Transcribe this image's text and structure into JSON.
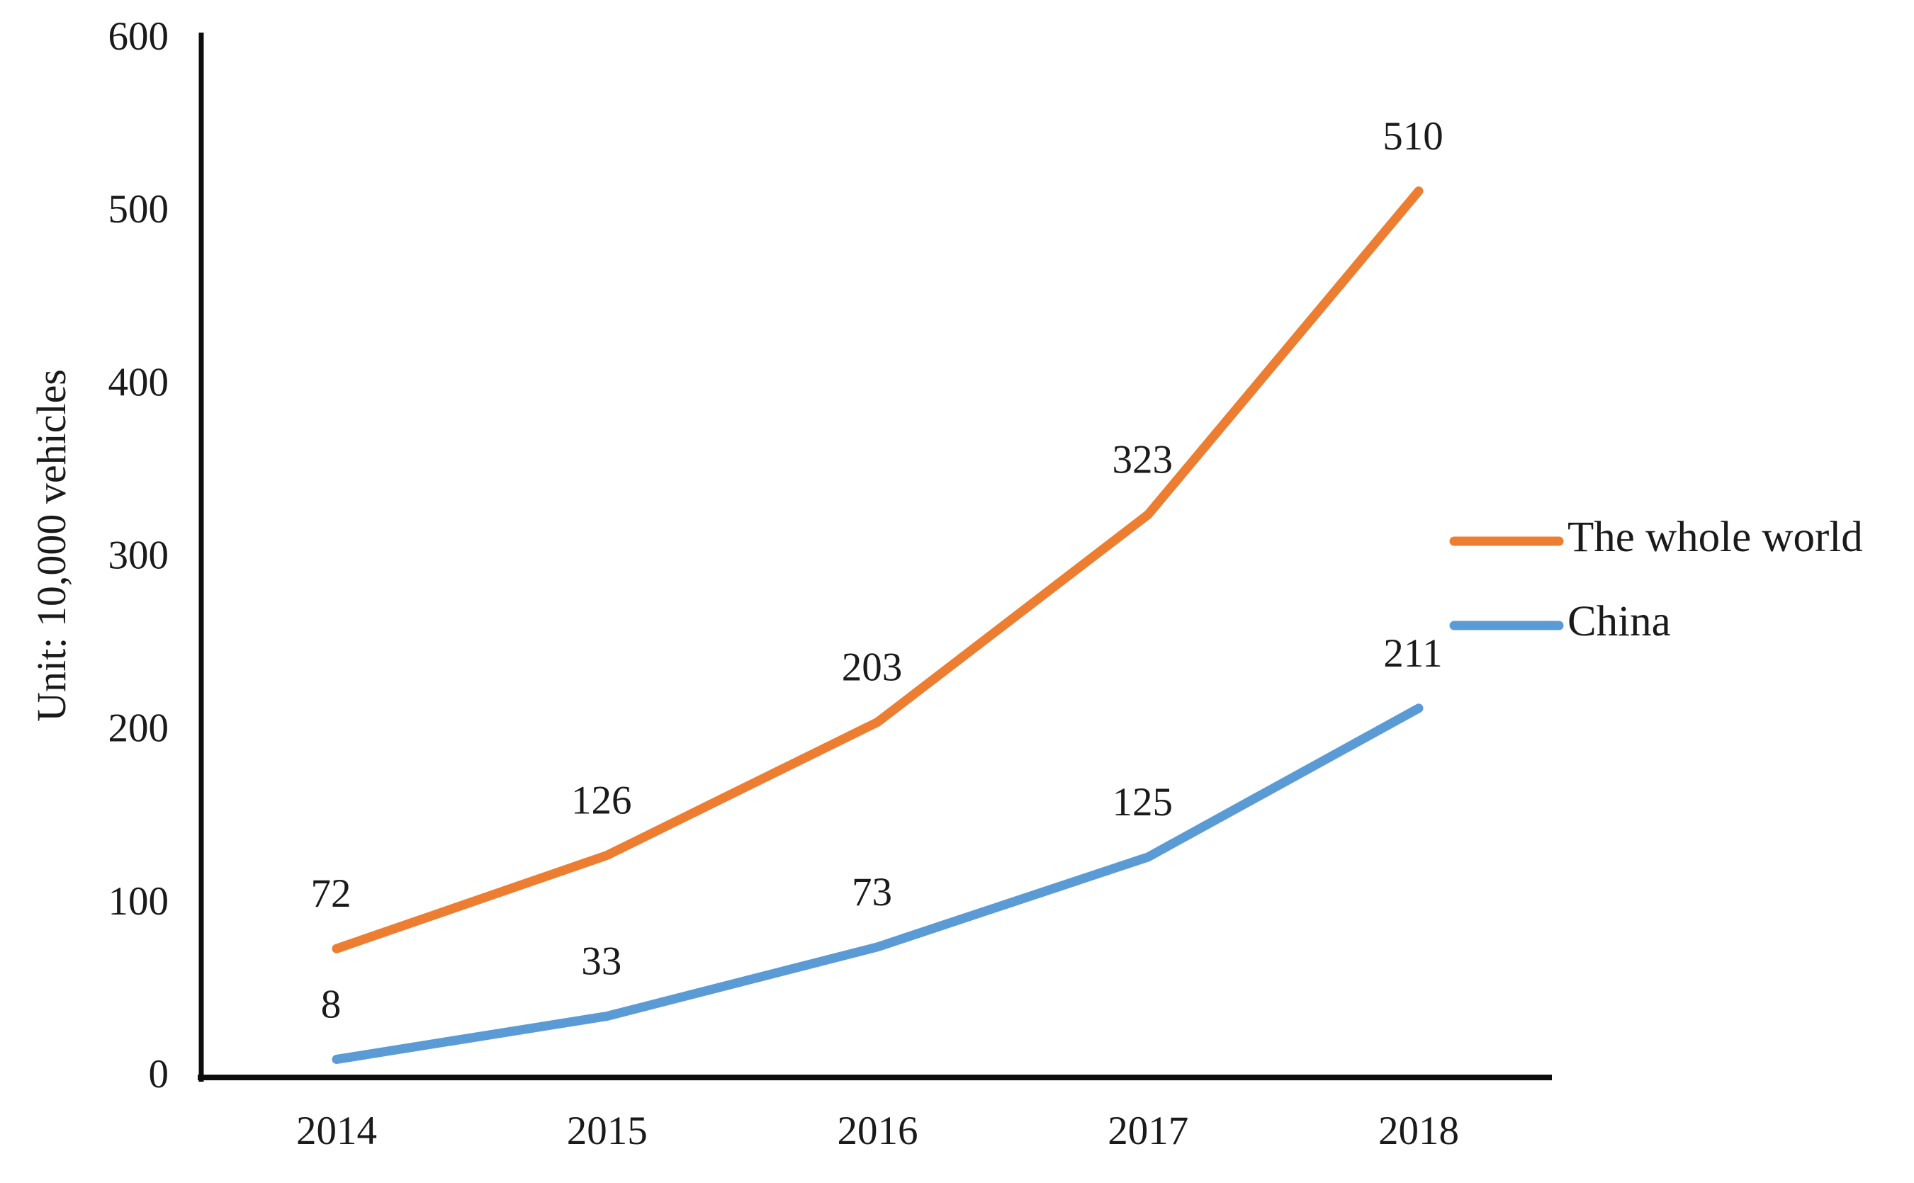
{
  "figure": {
    "description": "Line chart of vehicle ownership, the whole world vs China, 2014-2018"
  },
  "chart_data": {
    "type": "line",
    "categories": [
      "2014",
      "2015",
      "2016",
      "2017",
      "2018"
    ],
    "series": [
      {
        "name": "The whole world",
        "values": [
          72,
          126,
          203,
          323,
          510
        ],
        "color": "#ED7D31",
        "labels": [
          "72",
          "126",
          "203",
          "323",
          "510"
        ]
      },
      {
        "name": "China",
        "values": [
          8,
          33,
          73,
          125,
          211
        ],
        "color": "#5B9BD5",
        "labels": [
          "8",
          "33",
          "73",
          "125",
          "211"
        ]
      }
    ],
    "title": "",
    "xlabel": "",
    "ylabel": "Unit: 10,000 vehicles",
    "ylim": [
      0,
      600
    ],
    "yticks": [
      0,
      100,
      200,
      300,
      400,
      500,
      600
    ],
    "ytick_labels": [
      "0",
      "100",
      "200",
      "300",
      "400",
      "500",
      "600"
    ],
    "grid": false,
    "data_labels": true,
    "legend_position": "right",
    "axis_color": "#0d0d0d",
    "text_color": "#1a1a1a"
  }
}
